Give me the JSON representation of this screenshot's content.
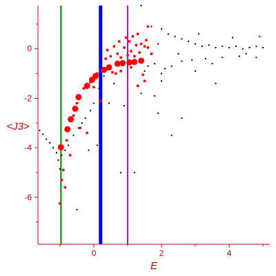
{
  "chart_data": {
    "type": "scatter",
    "xlabel": "E",
    "ylabel": "<J3>",
    "xlim": [
      -1.65,
      5.2
    ],
    "ylim": [
      -7.9,
      1.75
    ],
    "x_ticks": [
      0,
      2,
      4
    ],
    "y_ticks": [
      0,
      -2,
      -4,
      -6
    ],
    "x_tick_labels": [
      "0",
      "2",
      "4"
    ],
    "y_tick_labels": [
      "0",
      "-2",
      "-4",
      "-6"
    ],
    "grid": false,
    "legend": "none",
    "colors": {
      "axes": "#cc0000",
      "highlight_series": "#ff0000",
      "background_series": "#000000",
      "line_green": "#008000",
      "line_blue": "#0000ff",
      "line_magenta": "#cc00cc"
    },
    "vertical_lines": [
      {
        "x": -0.97,
        "color": "#008000",
        "width": "thin"
      },
      {
        "x": 0.2,
        "color": "#0000ff",
        "width": "thick"
      },
      {
        "x": 1.0,
        "color": "#cc00cc",
        "width": "thin"
      }
    ],
    "series": [
      {
        "marker": "large red circles",
        "color": "#ff0000",
        "points": [
          [
            -0.97,
            -3.98
          ],
          [
            -0.78,
            -3.25
          ],
          [
            -0.68,
            -2.85
          ],
          [
            -0.55,
            -2.42
          ],
          [
            -0.45,
            -1.95
          ],
          [
            -0.2,
            -1.5
          ],
          [
            -0.05,
            -1.25
          ],
          [
            0.05,
            -1.1
          ],
          [
            0.3,
            -0.85
          ],
          [
            0.45,
            -0.75
          ],
          [
            0.7,
            -0.6
          ],
          [
            0.85,
            -0.58
          ],
          [
            1.05,
            -0.55
          ],
          [
            1.2,
            -0.53
          ],
          [
            1.4,
            -0.48
          ]
        ]
      },
      {
        "marker": "small red squares",
        "color": "#ff0000",
        "points": [
          [
            -1.0,
            -6.25
          ],
          [
            -0.95,
            -5.3
          ],
          [
            -0.9,
            -4.9
          ],
          [
            -0.85,
            -5.6
          ],
          [
            -0.8,
            -3.7
          ],
          [
            -0.7,
            -4.3
          ],
          [
            -0.6,
            -2.7
          ],
          [
            -0.5,
            -2.2
          ],
          [
            -0.4,
            -3.2
          ],
          [
            -0.3,
            -1.6
          ],
          [
            -0.2,
            -3.4
          ],
          [
            -0.1,
            -1.35
          ],
          [
            0.1,
            -1.0
          ],
          [
            0.2,
            -2.1
          ],
          [
            0.25,
            -0.9
          ],
          [
            0.35,
            -0.4
          ],
          [
            0.4,
            -0.05
          ],
          [
            0.5,
            -0.3
          ],
          [
            0.55,
            -0.95
          ],
          [
            0.6,
            0.1
          ],
          [
            0.7,
            -0.2
          ],
          [
            0.75,
            0.3
          ],
          [
            0.8,
            -0.35
          ],
          [
            0.9,
            0.05
          ],
          [
            0.95,
            0.45
          ],
          [
            1.0,
            -0.25
          ],
          [
            1.05,
            0.3
          ],
          [
            1.1,
            -0.1
          ],
          [
            1.15,
            0.5
          ],
          [
            1.2,
            -0.3
          ],
          [
            1.25,
            0.15
          ],
          [
            1.3,
            0.6
          ],
          [
            1.35,
            -0.15
          ],
          [
            1.4,
            0.2
          ],
          [
            1.45,
            -1.05
          ],
          [
            1.5,
            0.1
          ],
          [
            1.55,
            0.35
          ],
          [
            1.6,
            0.05
          ],
          [
            1.7,
            -0.2
          ],
          [
            1.3,
            -1.5
          ],
          [
            1.5,
            -1.3
          ],
          [
            1.1,
            -0.75
          ],
          [
            0.8,
            -0.9
          ],
          [
            0.0,
            -1.55
          ],
          [
            0.65,
            -1.0
          ],
          [
            1.6,
            0.9
          ]
        ]
      },
      {
        "marker": "small black dots",
        "color": "#000000",
        "points": [
          [
            -1.6,
            -3.3
          ],
          [
            -1.5,
            -3.45
          ],
          [
            -1.4,
            -3.65
          ],
          [
            -1.3,
            -3.8
          ],
          [
            -1.2,
            -4.0
          ],
          [
            -1.1,
            -4.2
          ],
          [
            -1.05,
            -4.5
          ],
          [
            -1.0,
            -4.85
          ],
          [
            -0.95,
            -4.3
          ],
          [
            -0.85,
            -4.1
          ],
          [
            -0.75,
            -3.9
          ],
          [
            -0.6,
            -3.5
          ],
          [
            -0.5,
            -6.5
          ],
          [
            -0.45,
            -3.2
          ],
          [
            -0.35,
            -3.0
          ],
          [
            -0.25,
            -2.8
          ],
          [
            -0.15,
            -4.1
          ],
          [
            -0.1,
            -2.5
          ],
          [
            0.0,
            -2.2
          ],
          [
            0.1,
            -3.9
          ],
          [
            0.15,
            -1.6
          ],
          [
            0.3,
            -1.1
          ],
          [
            0.45,
            -2.2
          ],
          [
            0.6,
            -1.4
          ],
          [
            0.8,
            -5.0
          ],
          [
            0.9,
            -2.3
          ],
          [
            1.2,
            -5.0
          ],
          [
            1.4,
            -1.8
          ],
          [
            1.8,
            -1.9
          ],
          [
            1.9,
            -2.6
          ],
          [
            2.0,
            -1.3
          ],
          [
            2.3,
            -3.5
          ],
          [
            2.6,
            -2.8
          ],
          [
            3.6,
            -1.4
          ],
          [
            1.4,
            1.75
          ],
          [
            1.7,
            0.9
          ],
          [
            2.0,
            0.8
          ],
          [
            2.2,
            0.6
          ],
          [
            2.4,
            0.5
          ],
          [
            2.6,
            0.4
          ],
          [
            2.8,
            0.3
          ],
          [
            3.0,
            0.2
          ],
          [
            3.2,
            0.1
          ],
          [
            3.4,
            0.15
          ],
          [
            3.6,
            0.05
          ],
          [
            3.8,
            0.1
          ],
          [
            4.0,
            0.05
          ],
          [
            4.2,
            0.1
          ],
          [
            4.4,
            0.0
          ],
          [
            4.6,
            0.05
          ],
          [
            4.8,
            0.1
          ],
          [
            5.0,
            0.05
          ],
          [
            1.5,
            -0.9
          ],
          [
            1.6,
            -0.7
          ],
          [
            1.8,
            -0.6
          ],
          [
            2.1,
            -0.8
          ],
          [
            2.3,
            -0.7
          ],
          [
            2.6,
            -0.5
          ],
          [
            2.9,
            -0.45
          ],
          [
            3.3,
            -0.4
          ],
          [
            3.8,
            -0.35
          ],
          [
            4.3,
            -0.3
          ],
          [
            4.8,
            -0.35
          ],
          [
            2.0,
            -1.0
          ],
          [
            3.0,
            -0.9
          ],
          [
            1.9,
            0.2
          ],
          [
            2.5,
            -0.2
          ],
          [
            4.5,
            -0.2
          ],
          [
            3.1,
            0.6
          ],
          [
            4.1,
            0.45
          ],
          [
            4.9,
            0.5
          ],
          [
            3.5,
            -0.6
          ]
        ]
      }
    ]
  }
}
